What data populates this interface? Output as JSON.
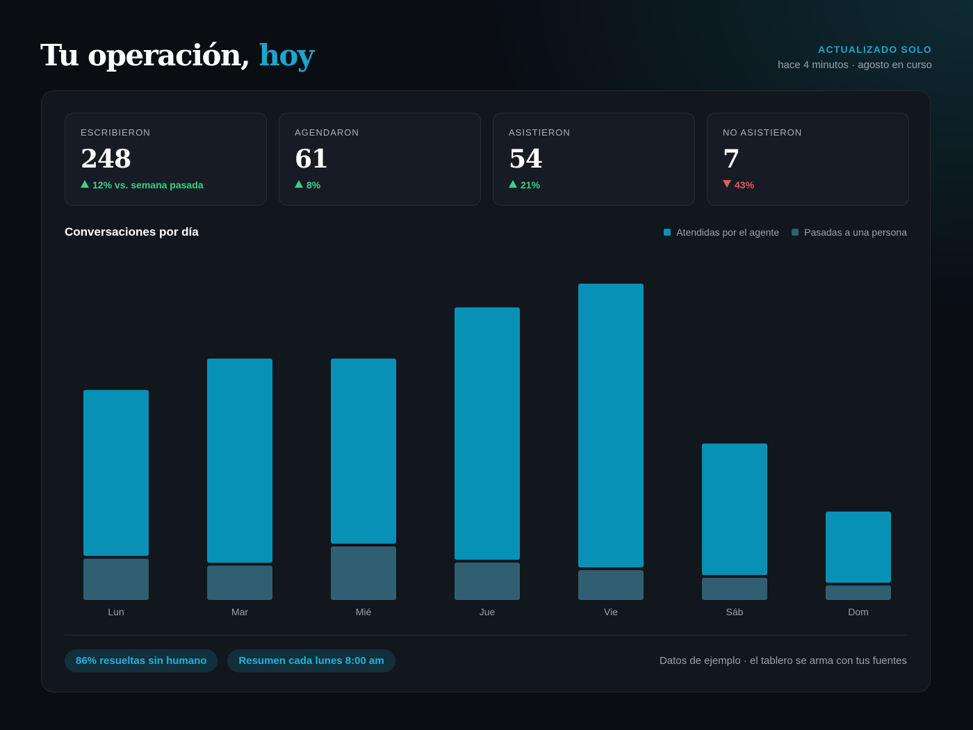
{
  "header": {
    "title_main": "Tu operación,",
    "title_accent": "hoy",
    "updated_label": "ACTUALIZADO SOLO",
    "updated_detail": "hace 4 minutos · agosto en curso"
  },
  "kpis": [
    {
      "label": "ESCRIBIERON",
      "value": "248",
      "delta": "12% vs. semana pasada",
      "direction": "up"
    },
    {
      "label": "AGENDARON",
      "value": "61",
      "delta": "8%",
      "direction": "up"
    },
    {
      "label": "ASISTIERON",
      "value": "54",
      "delta": "21%",
      "direction": "up"
    },
    {
      "label": "NO ASISTIERON",
      "value": "7",
      "delta": "43%",
      "direction": "down"
    }
  ],
  "colors": {
    "accent": "#1aa6cf",
    "agent": "#0891b6",
    "human": "#305f72",
    "up": "#3ccf8e",
    "down": "#e0604f"
  },
  "chart_data": {
    "type": "bar",
    "stacked": true,
    "title": "Conversaciones por día",
    "categories": [
      "Lun",
      "Mar",
      "Mié",
      "Jue",
      "Vie",
      "Sáb",
      "Dom"
    ],
    "series": [
      {
        "name": "Pasadas a una persona",
        "values": [
          5.4,
          4.5,
          7.0,
          4.9,
          3.9,
          2.9,
          1.9
        ]
      },
      {
        "name": "Atendidas por el agente",
        "values": [
          21.7,
          26.7,
          24.2,
          33.0,
          37.1,
          17.2,
          9.3
        ]
      }
    ],
    "ylim": [
      0,
      42
    ],
    "grid": false,
    "legend_position": "top-right"
  },
  "footer": {
    "pills": [
      "86% resueltas sin humano",
      "Resumen cada lunes 8:00 am"
    ],
    "note": "Datos de ejemplo · el tablero se arma con tus fuentes"
  }
}
